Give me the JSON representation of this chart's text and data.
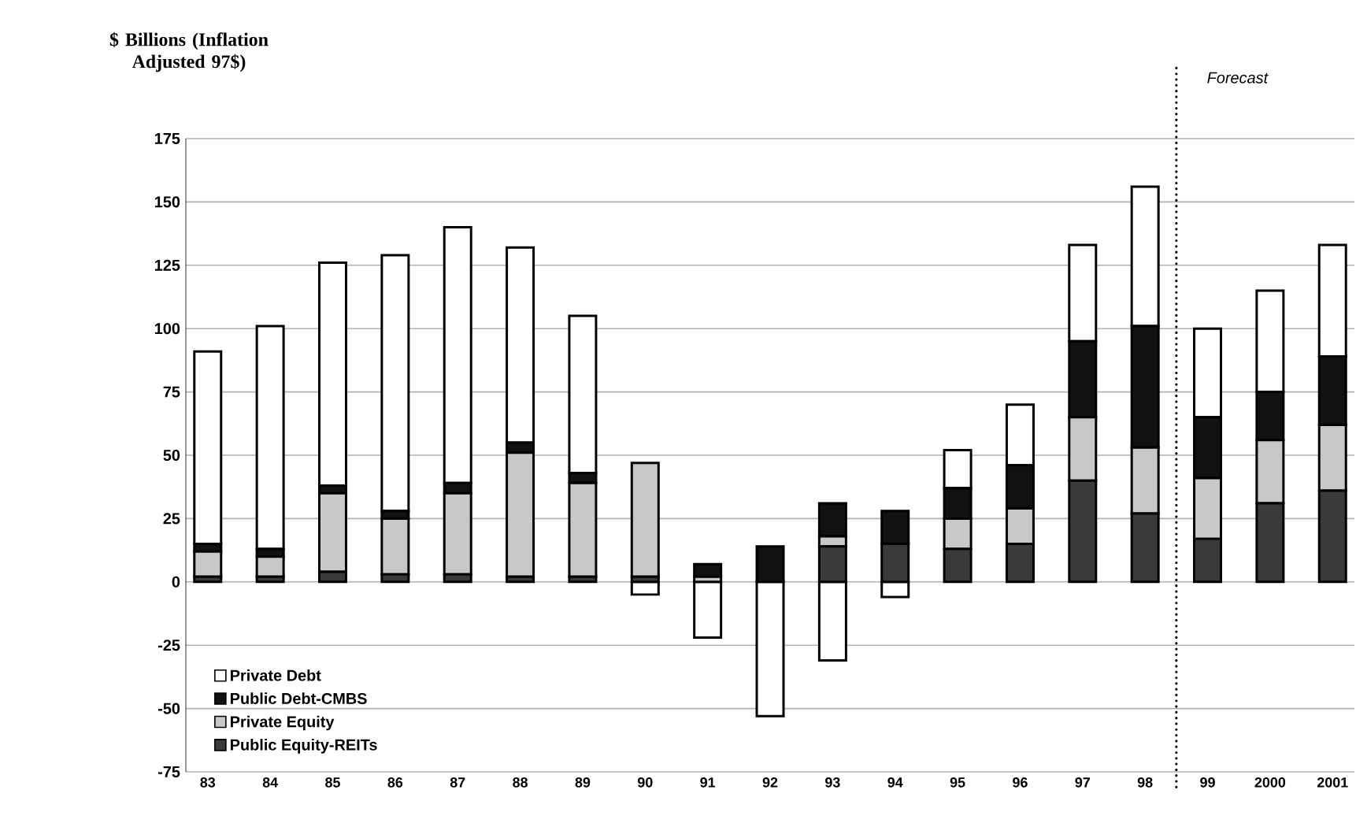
{
  "chart_data": {
    "type": "bar",
    "stacked": true,
    "ylabel": "$ Billions (Inflation Adjusted 97$)",
    "categories": [
      "83",
      "84",
      "85",
      "86",
      "87",
      "88",
      "89",
      "90",
      "91",
      "92",
      "93",
      "94",
      "95",
      "96",
      "97",
      "98",
      "99",
      "2000",
      "2001"
    ],
    "series": [
      {
        "name": "Public Equity-REITs",
        "color": "#3a3a3a",
        "values": [
          2,
          2,
          4,
          3,
          3,
          2,
          2,
          2,
          0,
          0,
          14,
          15,
          13,
          15,
          40,
          27,
          17,
          31,
          36
        ]
      },
      {
        "name": "Private Equity",
        "color": "#c8c8c8",
        "values": [
          10,
          8,
          31,
          22,
          32,
          49,
          37,
          45,
          2,
          0,
          4,
          0,
          12,
          14,
          25,
          26,
          24,
          25,
          26
        ]
      },
      {
        "name": "Public Debt-CMBS",
        "color": "#111111",
        "values": [
          3,
          3,
          3,
          3,
          4,
          4,
          4,
          0,
          5,
          14,
          13,
          13,
          12,
          17,
          30,
          48,
          24,
          19,
          27
        ]
      },
      {
        "name": "Private Debt",
        "color": "#ffffff",
        "values": [
          76,
          88,
          88,
          101,
          101,
          77,
          62,
          -5,
          -22,
          -53,
          -31,
          -6,
          15,
          24,
          38,
          55,
          35,
          40,
          44
        ]
      }
    ],
    "ylim": [
      -75,
      175
    ],
    "yticks": [
      -75,
      -50,
      -25,
      0,
      25,
      50,
      75,
      100,
      125,
      150,
      175
    ],
    "grid": "y",
    "legend": "bottom left",
    "annotations": [
      "Forecast"
    ]
  }
}
